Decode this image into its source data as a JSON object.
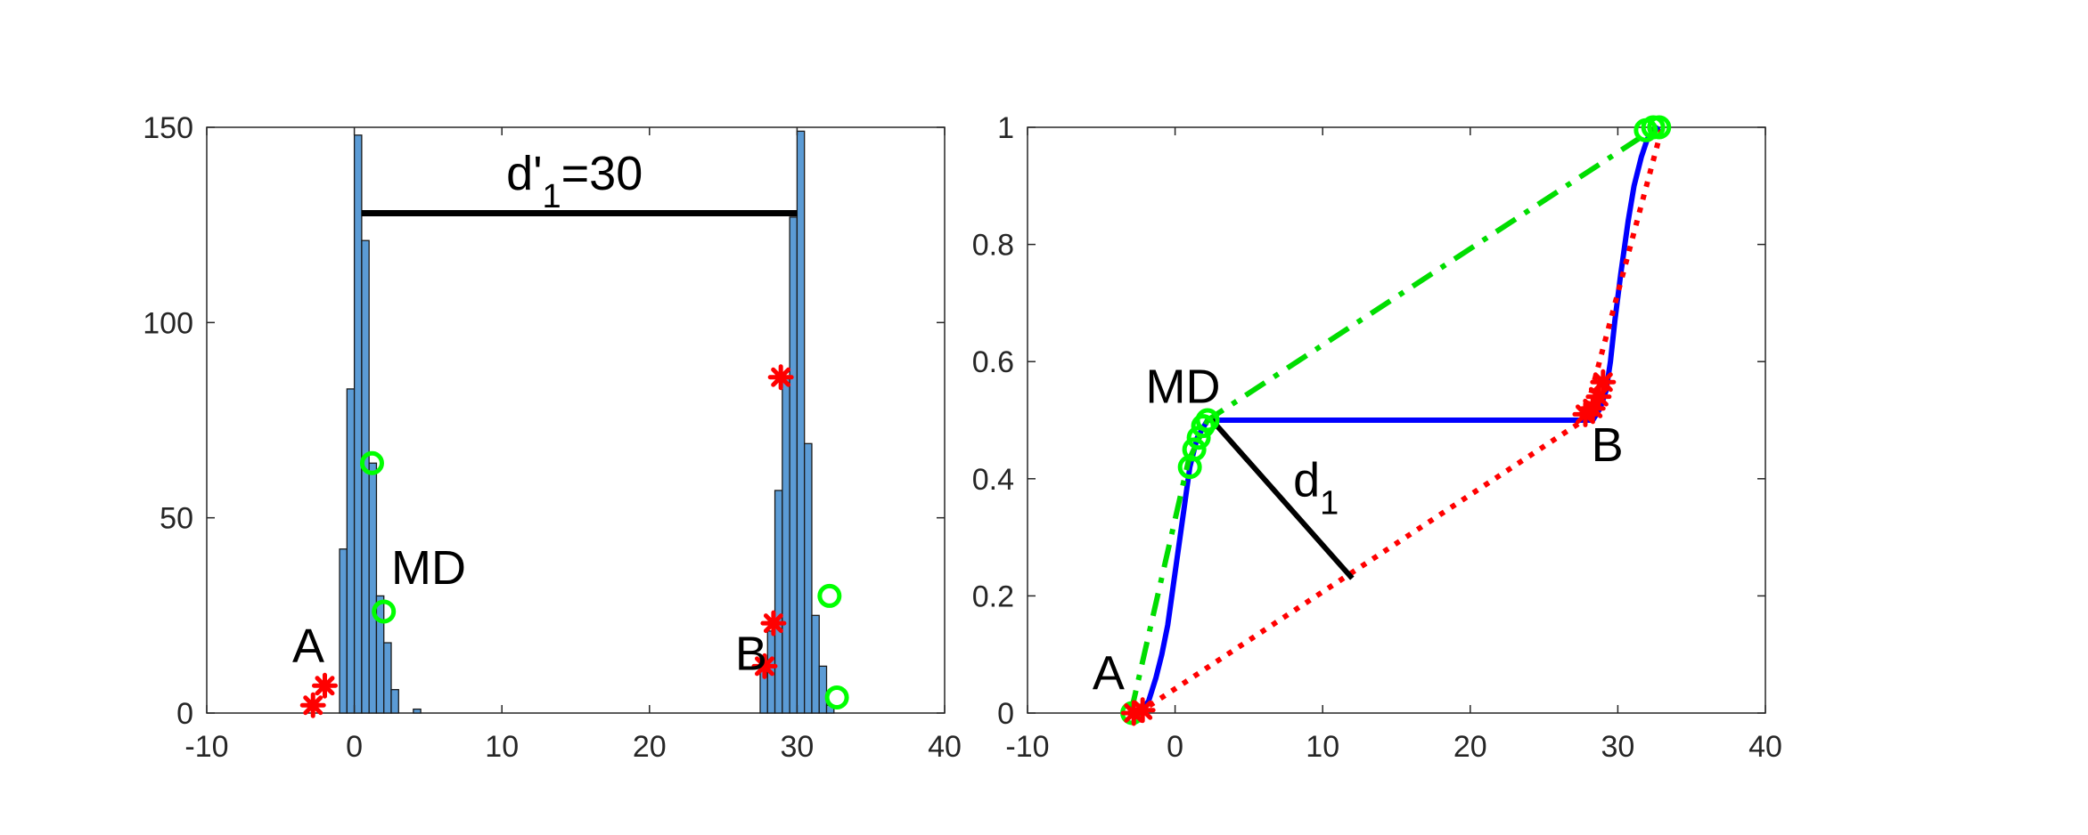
{
  "colors": {
    "hist_bar": "#5b9bd5",
    "green_markers": "#00ff00",
    "red_markers": "#ff0000",
    "blue_line": "#0000ff",
    "green_dash": "#00dd00",
    "red_dot": "#ff0000",
    "annotation_line": "#000000"
  },
  "chart_data": [
    {
      "type": "bar",
      "panel": "left",
      "xlim": [
        -10,
        40
      ],
      "ylim": [
        0,
        150
      ],
      "xticks": [
        -10,
        0,
        10,
        20,
        30,
        40
      ],
      "yticks": [
        0,
        50,
        100,
        150
      ],
      "xtick_labels": [
        "-10",
        "0",
        "10",
        "20",
        "30",
        "40"
      ],
      "ytick_labels": [
        "0",
        "50",
        "100",
        "150"
      ],
      "bin_width": 0.5,
      "bins": [
        {
          "x": -1.0,
          "value": 42
        },
        {
          "x": -0.5,
          "value": 83
        },
        {
          "x": 0.0,
          "value": 148
        },
        {
          "x": 0.5,
          "value": 121
        },
        {
          "x": 1.0,
          "value": 64
        },
        {
          "x": 1.5,
          "value": 30
        },
        {
          "x": 2.0,
          "value": 18
        },
        {
          "x": 2.5,
          "value": 6
        },
        {
          "x": 4.0,
          "value": 1
        },
        {
          "x": 27.5,
          "value": 12
        },
        {
          "x": 28.0,
          "value": 21
        },
        {
          "x": 28.5,
          "value": 57
        },
        {
          "x": 29.0,
          "value": 86
        },
        {
          "x": 29.5,
          "value": 127
        },
        {
          "x": 30.0,
          "value": 149
        },
        {
          "x": 30.5,
          "value": 69
        },
        {
          "x": 31.0,
          "value": 25
        },
        {
          "x": 31.5,
          "value": 12
        },
        {
          "x": 32.0,
          "value": 2
        }
      ],
      "red_markers": [
        {
          "x": -2.8,
          "y": 2
        },
        {
          "x": -2.0,
          "y": 7
        },
        {
          "x": 27.8,
          "y": 12
        },
        {
          "x": 28.4,
          "y": 23
        },
        {
          "x": 28.9,
          "y": 86
        }
      ],
      "green_markers": [
        {
          "x": 1.2,
          "y": 64
        },
        {
          "x": 2.0,
          "y": 26
        },
        {
          "x": 32.2,
          "y": 30
        },
        {
          "x": 32.7,
          "y": 4
        }
      ],
      "segment": {
        "x1": 0.5,
        "x2": 30,
        "y": 128
      },
      "annotations": [
        {
          "text": "A",
          "x": -4.2,
          "y": 13
        },
        {
          "text": "MD",
          "x": 2.5,
          "y": 33
        },
        {
          "text": "B",
          "x": 25.8,
          "y": 11
        }
      ],
      "segment_label": {
        "main": "d'",
        "sub": "1",
        "suffix": "=30",
        "x": 10.3,
        "y": 134
      }
    },
    {
      "type": "line",
      "panel": "right",
      "xlim": [
        -10,
        40
      ],
      "ylim": [
        0,
        1
      ],
      "xticks": [
        -10,
        0,
        10,
        20,
        30,
        40
      ],
      "yticks": [
        0,
        0.2,
        0.4,
        0.6,
        0.8,
        1
      ],
      "xtick_labels": [
        "-10",
        "0",
        "10",
        "20",
        "30",
        "40"
      ],
      "ytick_labels": [
        "0",
        "0.2",
        "0.4",
        "0.6",
        "0.8",
        "1"
      ],
      "series": [
        {
          "style": "solid-blue",
          "x": [
            -2.5,
            -1.8,
            -1.3,
            -0.9,
            -0.5,
            0.0,
            0.5,
            1.0,
            1.5,
            2.2,
            2.6,
            27.7,
            28.3,
            28.8,
            29.2,
            29.5,
            29.8,
            30.2,
            30.7,
            31.1,
            31.6,
            32.0,
            32.3,
            32.8
          ],
          "y": [
            0.0,
            0.02,
            0.06,
            0.1,
            0.15,
            0.24,
            0.33,
            0.42,
            0.47,
            0.5,
            0.5,
            0.5,
            0.5,
            0.52,
            0.55,
            0.6,
            0.67,
            0.75,
            0.84,
            0.9,
            0.95,
            0.98,
            0.99,
            1.0
          ]
        },
        {
          "style": "dashdot-green",
          "x": [
            -3.0,
            0.9,
            2.2,
            32.6
          ],
          "y": [
            0.0,
            0.43,
            0.5,
            1.0
          ]
        },
        {
          "style": "dotted-red",
          "x": [
            -2.5,
            27.7,
            33.0
          ],
          "y": [
            0.0,
            0.5,
            1.0
          ]
        }
      ],
      "red_markers": [
        {
          "x": -2.8,
          "y": 0.0
        },
        {
          "x": -2.2,
          "y": 0.005
        },
        {
          "x": 27.8,
          "y": 0.51
        },
        {
          "x": 28.3,
          "y": 0.52
        },
        {
          "x": 28.7,
          "y": 0.54
        },
        {
          "x": 29.0,
          "y": 0.565
        }
      ],
      "green_markers": [
        {
          "x": -2.9,
          "y": 0.0
        },
        {
          "x": 1.0,
          "y": 0.42
        },
        {
          "x": 1.3,
          "y": 0.45
        },
        {
          "x": 1.6,
          "y": 0.47
        },
        {
          "x": 1.9,
          "y": 0.49
        },
        {
          "x": 2.2,
          "y": 0.5
        },
        {
          "x": 31.9,
          "y": 0.995
        },
        {
          "x": 32.4,
          "y": 1.0
        },
        {
          "x": 32.8,
          "y": 1.0
        }
      ],
      "segment": {
        "x1": 2.5,
        "y1": 0.5,
        "x2": 12.0,
        "y2": 0.23
      },
      "annotations": [
        {
          "text": "A",
          "x": -5.6,
          "y": 0.04
        },
        {
          "text": "MD",
          "x": -2.0,
          "y": 0.53
        },
        {
          "text": "B",
          "x": 28.2,
          "y": 0.43
        }
      ],
      "segment_label": {
        "main": "d",
        "sub": "1",
        "x": 8.0,
        "y": 0.37
      }
    }
  ]
}
